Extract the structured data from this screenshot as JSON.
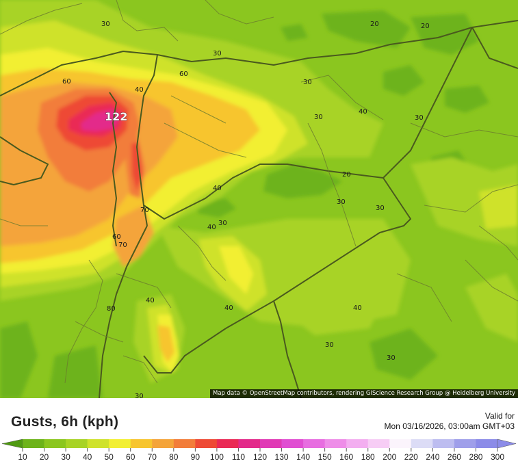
{
  "map": {
    "max_value_label": "122",
    "contour_labels": [
      "30",
      "20",
      "20",
      "30",
      "60",
      "60",
      "40",
      "30",
      "40",
      "30",
      "30",
      "20",
      "30",
      "30",
      "40",
      "40",
      "30",
      "70",
      "60",
      "70",
      "40",
      "40",
      "40",
      "30",
      "30",
      "80",
      "30"
    ],
    "attribution": "Map data © OpenStreetMap contributors, rendering GIScience Research Group @ Heidelberg University"
  },
  "legend": {
    "title": "Gusts, 6h (kph)",
    "valid_label": "Valid for",
    "valid_time": "Mon 03/16/2026, 03:00am GMT+03",
    "ticks": [
      "10",
      "20",
      "30",
      "40",
      "50",
      "60",
      "70",
      "80",
      "90",
      "100",
      "110",
      "120",
      "130",
      "140",
      "150",
      "160",
      "180",
      "200",
      "220",
      "240",
      "260",
      "280",
      "300"
    ],
    "colors": [
      "#4f9a12",
      "#6db31a",
      "#8bc61f",
      "#a8d326",
      "#cfe22c",
      "#f2ef33",
      "#f7c52f",
      "#f4a43a",
      "#f27d3a",
      "#ee4a35",
      "#ea2a55",
      "#e32a8a",
      "#e03ab5",
      "#e04ed2",
      "#e76de0",
      "#ee8de8",
      "#f3aef0",
      "#f7cdf5",
      "#fbf4fc",
      "#dcdcf6",
      "#bdbdf0",
      "#9f9fea",
      "#8b8be8"
    ]
  }
}
